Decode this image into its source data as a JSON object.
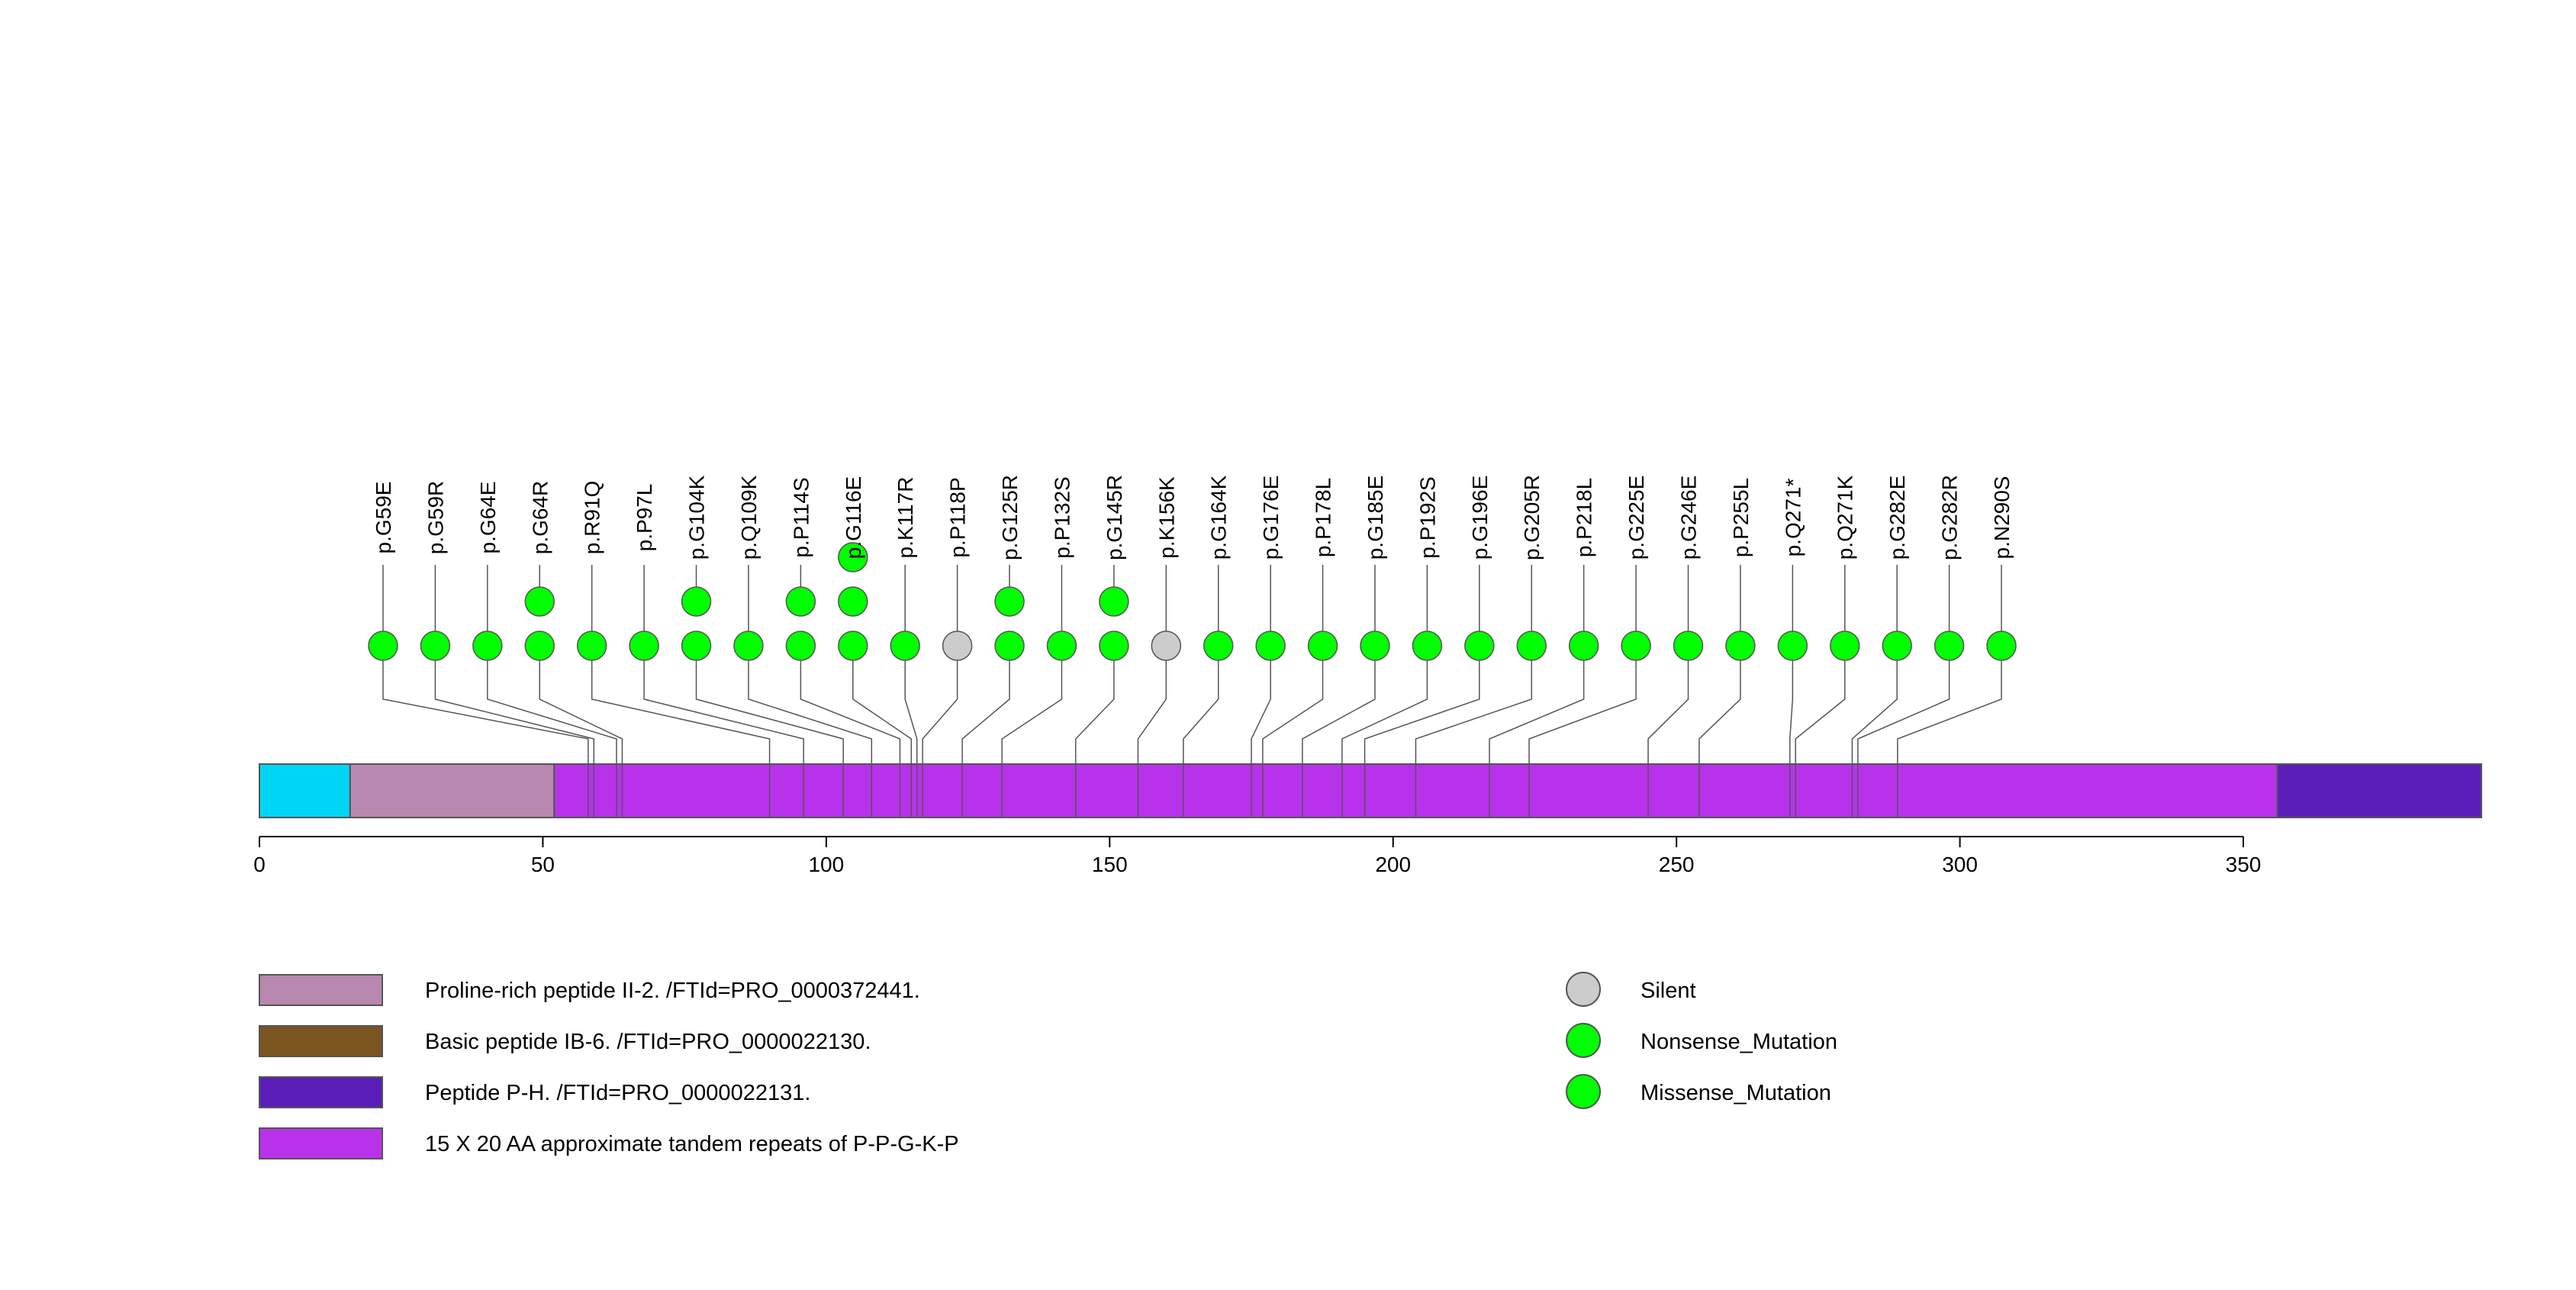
{
  "chart_data": {
    "type": "lollipop",
    "protein_length": 392,
    "axis": {
      "ticks": [
        0,
        50,
        100,
        150,
        200,
        250,
        300,
        350
      ]
    },
    "domains": [
      {
        "start": 0,
        "end": 16,
        "color": "#00d5f5",
        "label": ""
      },
      {
        "start": 16,
        "end": 52,
        "color": "#b888b0",
        "label": "Proline-rich peptide II-2. /FTId=PRO_0000372441."
      },
      {
        "start": 52,
        "end": 356,
        "color": "#b832ec",
        "label": "15 X 20 AA approximate tandem repeats of P-P-G-K-P"
      },
      {
        "start": 356,
        "end": 392,
        "color": "#5a1db8",
        "label": "Peptide P-H. /FTId=PRO_0000022131."
      }
    ],
    "mutations": [
      {
        "label": "p.G59E",
        "pos": 58,
        "count": 1,
        "type": "Nonsense_Mutation"
      },
      {
        "label": "p.G59R",
        "pos": 59,
        "count": 1,
        "type": "Nonsense_Mutation"
      },
      {
        "label": "p.G64E",
        "pos": 63,
        "count": 1,
        "type": "Nonsense_Mutation"
      },
      {
        "label": "p.G64R",
        "pos": 64,
        "count": 2,
        "type": "Nonsense_Mutation"
      },
      {
        "label": "p.R91Q",
        "pos": 90,
        "count": 1,
        "type": "Nonsense_Mutation"
      },
      {
        "label": "p.P97L",
        "pos": 96,
        "count": 1,
        "type": "Nonsense_Mutation"
      },
      {
        "label": "p.G104K",
        "pos": 103,
        "count": 2,
        "type": "Nonsense_Mutation"
      },
      {
        "label": "p.Q109K",
        "pos": 108,
        "count": 1,
        "type": "Nonsense_Mutation"
      },
      {
        "label": "p.P114S",
        "pos": 113,
        "count": 2,
        "type": "Nonsense_Mutation"
      },
      {
        "label": "p.G116E",
        "pos": 115,
        "count": 3,
        "type": "Nonsense_Mutation"
      },
      {
        "label": "p.K117R",
        "pos": 116,
        "count": 1,
        "type": "Nonsense_Mutation"
      },
      {
        "label": "p.P118P",
        "pos": 117,
        "count": 1,
        "type": "Silent"
      },
      {
        "label": "p.G125R",
        "pos": 124,
        "count": 2,
        "type": "Nonsense_Mutation"
      },
      {
        "label": "p.P132S",
        "pos": 131,
        "count": 1,
        "type": "Nonsense_Mutation"
      },
      {
        "label": "p.G145R",
        "pos": 144,
        "count": 2,
        "type": "Nonsense_Mutation"
      },
      {
        "label": "p.K156K",
        "pos": 155,
        "count": 1,
        "type": "Silent"
      },
      {
        "label": "p.G164K",
        "pos": 163,
        "count": 1,
        "type": "Nonsense_Mutation"
      },
      {
        "label": "p.G176E",
        "pos": 175,
        "count": 1,
        "type": "Nonsense_Mutation"
      },
      {
        "label": "p.P178L",
        "pos": 177,
        "count": 1,
        "type": "Nonsense_Mutation"
      },
      {
        "label": "p.G185E",
        "pos": 184,
        "count": 1,
        "type": "Nonsense_Mutation"
      },
      {
        "label": "p.P192S",
        "pos": 191,
        "count": 1,
        "type": "Nonsense_Mutation"
      },
      {
        "label": "p.G196E",
        "pos": 195,
        "count": 1,
        "type": "Nonsense_Mutation"
      },
      {
        "label": "p.G205R",
        "pos": 204,
        "count": 1,
        "type": "Nonsense_Mutation"
      },
      {
        "label": "p.P218L",
        "pos": 217,
        "count": 1,
        "type": "Nonsense_Mutation"
      },
      {
        "label": "p.G225E",
        "pos": 224,
        "count": 1,
        "type": "Nonsense_Mutation"
      },
      {
        "label": "p.G246E",
        "pos": 245,
        "count": 1,
        "type": "Nonsense_Mutation"
      },
      {
        "label": "p.P255L",
        "pos": 254,
        "count": 1,
        "type": "Nonsense_Mutation"
      },
      {
        "label": "p.Q271*",
        "pos": 270,
        "count": 1,
        "type": "Nonsense_Mutation"
      },
      {
        "label": "p.Q271K",
        "pos": 271,
        "count": 1,
        "type": "Nonsense_Mutation"
      },
      {
        "label": "p.G282E",
        "pos": 281,
        "count": 1,
        "type": "Nonsense_Mutation"
      },
      {
        "label": "p.G282R",
        "pos": 282,
        "count": 1,
        "type": "Nonsense_Mutation"
      },
      {
        "label": "p.N290S",
        "pos": 289,
        "count": 1,
        "type": "Nonsense_Mutation"
      }
    ],
    "legend_domains": [
      {
        "label": "Proline-rich peptide II-2. /FTId=PRO_0000372441.",
        "color": "#b888b0"
      },
      {
        "label": "Basic peptide IB-6. /FTId=PRO_0000022130.",
        "color": "#7a5520"
      },
      {
        "label": "Peptide P-H. /FTId=PRO_0000022131.",
        "color": "#5a1db8"
      },
      {
        "label": "15 X 20 AA approximate tandem repeats of P-P-G-K-P",
        "color": "#b832ec"
      }
    ],
    "legend_mutations": [
      {
        "label": "Silent",
        "color": "#cccccc"
      },
      {
        "label": "Nonsense_Mutation",
        "color": "#00ff00"
      },
      {
        "label": "Missense_Mutation",
        "color": "#00ff00"
      }
    ],
    "colors": {
      "Silent": "#cccccc",
      "Nonsense_Mutation": "#00ff00",
      "Missense_Mutation": "#00ff00"
    }
  }
}
